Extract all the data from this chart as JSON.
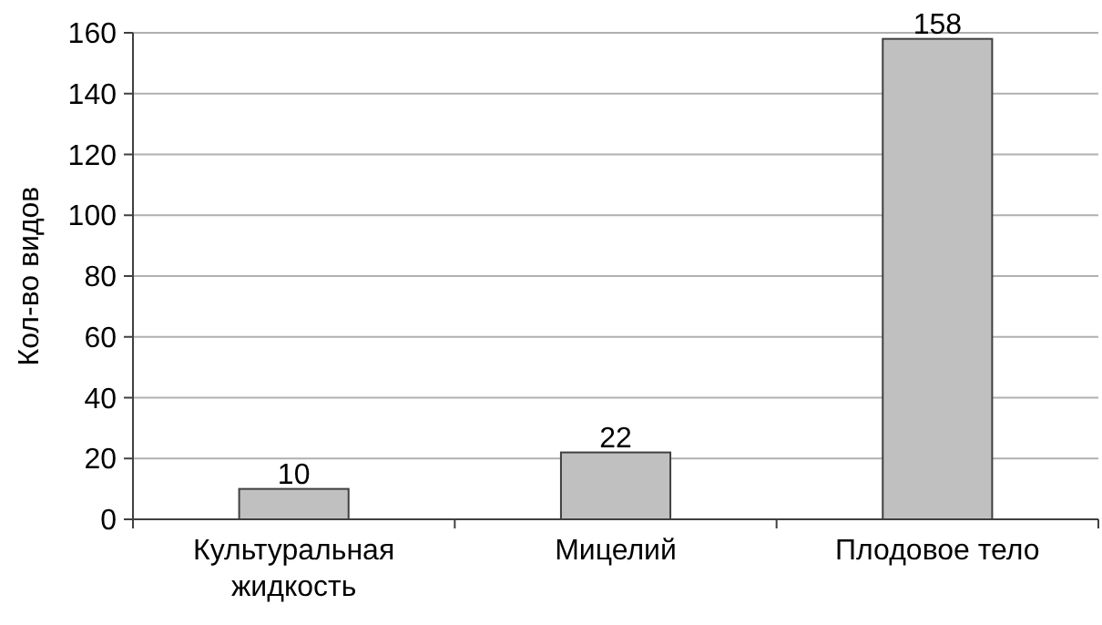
{
  "chart_data": {
    "type": "bar",
    "ylabel": "Кол-во видов",
    "categories": [
      "Культуральная жидкость",
      "Мицелий",
      "Плодовое тело"
    ],
    "values": [
      10,
      22,
      158
    ],
    "color": "#c0c0c0",
    "ylim": [
      0,
      160
    ],
    "yticks": [
      0,
      20,
      40,
      60,
      80,
      100,
      120,
      140,
      160
    ],
    "grid": "y",
    "data_labels": true
  }
}
